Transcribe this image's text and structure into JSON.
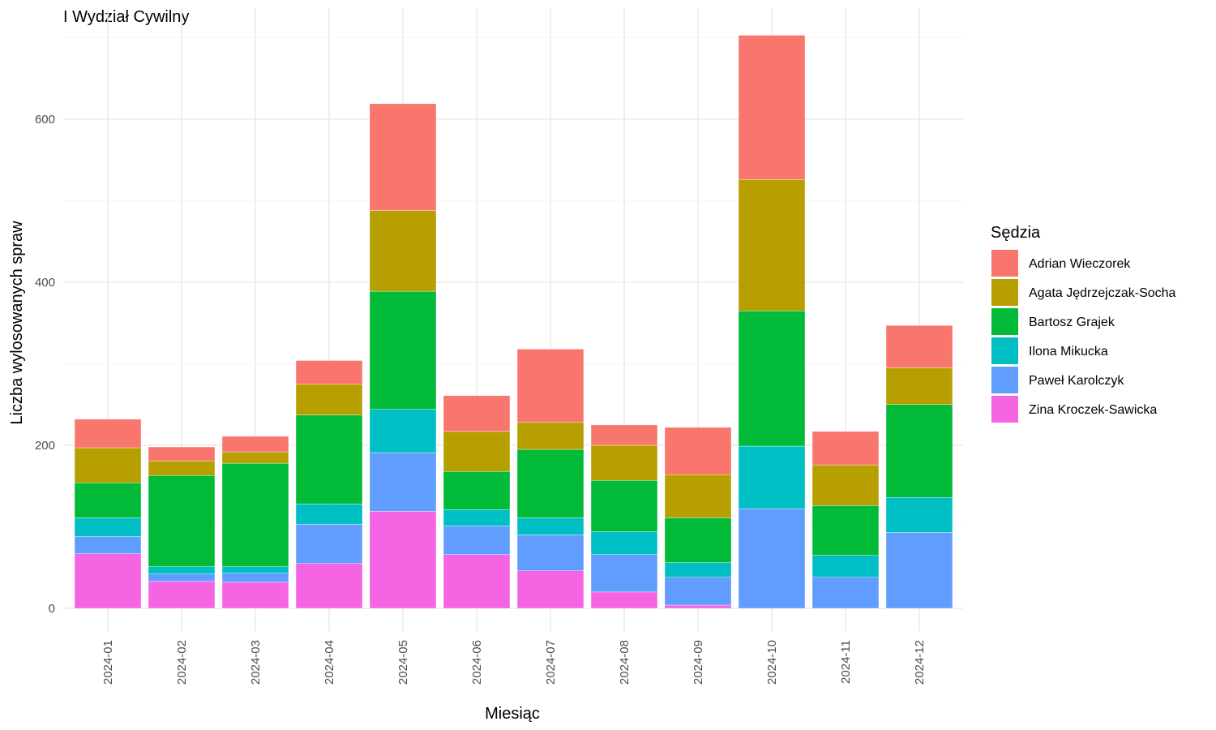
{
  "chart_data": {
    "type": "bar",
    "stacked": true,
    "title": "I Wydział Cywilny",
    "xlabel": "Miesiąc",
    "ylabel": "Liczba wylosowanych spraw",
    "ylim": [
      0,
      700
    ],
    "yticks": [
      0,
      200,
      400,
      600
    ],
    "grid": true,
    "legend_position": "right",
    "legend_title": "Sędzia",
    "categories": [
      "2024-01",
      "2024-02",
      "2024-03",
      "2024-04",
      "2024-05",
      "2024-06",
      "2024-07",
      "2024-08",
      "2024-09",
      "2024-10",
      "2024-11",
      "2024-12"
    ],
    "series": [
      {
        "name": "Zina Kroczek-Sawicka",
        "color": "#F564E3",
        "values": [
          67,
          33,
          32,
          55,
          119,
          66,
          46,
          20,
          4,
          0,
          0,
          0
        ]
      },
      {
        "name": "Paweł Karolczyk",
        "color": "#619CFF",
        "values": [
          21,
          9,
          11,
          48,
          72,
          35,
          44,
          46,
          34,
          122,
          38,
          93
        ]
      },
      {
        "name": "Ilona Mikucka",
        "color": "#00BFC4",
        "values": [
          23,
          9,
          8,
          25,
          53,
          20,
          21,
          28,
          18,
          77,
          27,
          43
        ]
      },
      {
        "name": "Bartosz Grajek",
        "color": "#00BA38",
        "values": [
          43,
          112,
          127,
          109,
          145,
          47,
          84,
          63,
          55,
          166,
          61,
          114
        ]
      },
      {
        "name": "Agata Jędrzejczak-Socha",
        "color": "#B79F00",
        "values": [
          43,
          18,
          14,
          38,
          99,
          49,
          33,
          43,
          53,
          161,
          50,
          45
        ]
      },
      {
        "name": "Adrian Wieczorek",
        "color": "#F8766D",
        "values": [
          35,
          17,
          19,
          29,
          131,
          44,
          90,
          25,
          58,
          177,
          41,
          52
        ]
      }
    ],
    "legend_order": [
      "Adrian Wieczorek",
      "Agata Jędrzejczak-Socha",
      "Bartosz Grajek",
      "Ilona Mikucka",
      "Paweł Karolczyk",
      "Zina Kroczek-Sawicka"
    ]
  }
}
